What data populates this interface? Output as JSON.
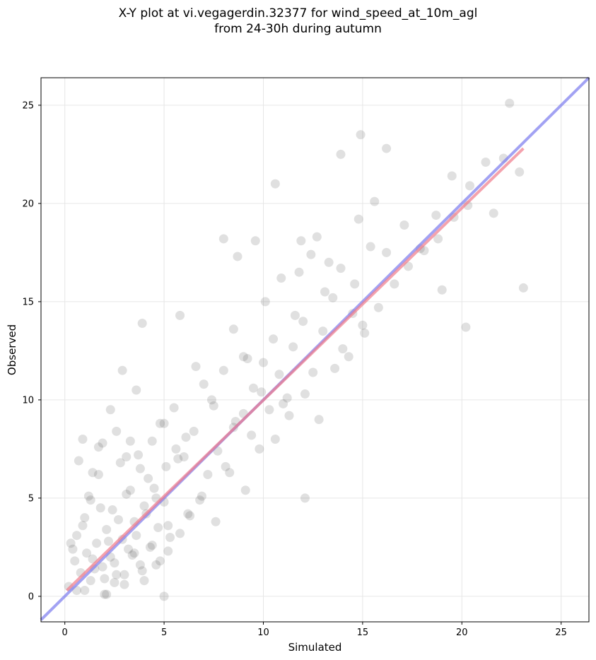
{
  "chart_data": {
    "type": "scatter",
    "title_lines": [
      "X-Y plot at vi.vegagerdin.32377 for wind_speed_at_10m_agl",
      "from 24-30h during autumn"
    ],
    "xlabel": "Simulated",
    "ylabel": "Observed",
    "xlim": [
      -1.2,
      26.4
    ],
    "ylim": [
      -1.3,
      26.4
    ],
    "xticks": [
      0,
      5,
      10,
      15,
      20,
      25
    ],
    "yticks": [
      0,
      5,
      10,
      15,
      20,
      25
    ],
    "grid": true,
    "point_color": "#555555",
    "point_opacity": 0.18,
    "identity_line": {
      "color": "#7b7bee",
      "from": [
        -1.2,
        -1.2
      ],
      "to": [
        26.4,
        26.4
      ]
    },
    "fit_line": {
      "color": "#f07b8a",
      "from": [
        0.1,
        0.3
      ],
      "to": [
        23.1,
        22.8
      ]
    },
    "series": [
      {
        "x": [
          0.2,
          0.5,
          0.8,
          0.6,
          1.1,
          1.3,
          1.6,
          1.9,
          2.1,
          2.3,
          2.6,
          2.9,
          3.2,
          3.5,
          3.8,
          4.1,
          4.4,
          4.7,
          5.0,
          5.3,
          0.4,
          0.9,
          1.4,
          1.8,
          2.2,
          2.7,
          3.1,
          3.6,
          4.0,
          4.5,
          1.0,
          1.5,
          2.0,
          2.5,
          3.0,
          3.4,
          3.9,
          4.3,
          4.8,
          5.2,
          1.2,
          1.7,
          2.4,
          2.8,
          3.3,
          3.7,
          4.2,
          4.6,
          5.1,
          5.6,
          0.7,
          1.3,
          1.9,
          2.6,
          3.1,
          3.8,
          4.4,
          5.0,
          5.7,
          6.1,
          2.0,
          2.5,
          3.0,
          3.5,
          4.0,
          4.6,
          5.2,
          5.8,
          6.3,
          6.8,
          7.2,
          7.7,
          8.1,
          8.6,
          9.0,
          9.4,
          9.9,
          10.3,
          10.8,
          11.2,
          5.5,
          6.0,
          6.5,
          7.0,
          7.5,
          8.0,
          8.5,
          9.0,
          9.5,
          10.0,
          10.5,
          11.0,
          11.5,
          12.0,
          12.5,
          13.0,
          13.5,
          14.0,
          14.5,
          15.0,
          6.2,
          6.9,
          7.6,
          8.3,
          9.1,
          9.8,
          10.6,
          11.3,
          12.1,
          12.8,
          13.6,
          14.3,
          15.1,
          15.8,
          16.6,
          17.3,
          18.1,
          18.8,
          19.6,
          20.3,
          8.5,
          9.2,
          10.1,
          10.9,
          11.6,
          12.4,
          13.1,
          13.9,
          14.6,
          15.4,
          3.9,
          4.8,
          5.8,
          6.6,
          7.4,
          8.7,
          9.6,
          11.8,
          12.7,
          13.3,
          14.8,
          15.6,
          16.2,
          17.1,
          17.9,
          18.7,
          19.5,
          20.4,
          21.2,
          22.1,
          22.9,
          23.1,
          21.6,
          20.2,
          19.0,
          0.3,
          0.6,
          1.0,
          1.4,
          2.3,
          2.9,
          3.3,
          0.9,
          1.7,
          3.6
        ],
        "y": [
          0.5,
          1.8,
          1.2,
          3.1,
          2.2,
          0.8,
          2.7,
          1.5,
          3.4,
          2.0,
          1.1,
          2.9,
          2.4,
          3.8,
          1.6,
          4.2,
          2.6,
          3.5,
          4.8,
          3.0,
          2.4,
          3.6,
          1.9,
          4.5,
          2.8,
          3.9,
          5.2,
          3.1,
          4.6,
          5.5,
          0.3,
          1.4,
          0.9,
          1.7,
          0.6,
          2.1,
          1.3,
          2.5,
          1.8,
          3.6,
          5.1,
          6.2,
          4.4,
          6.8,
          5.4,
          7.2,
          6.0,
          5.0,
          6.6,
          7.5,
          6.9,
          4.9,
          7.8,
          8.4,
          7.1,
          6.5,
          7.9,
          8.8,
          7.0,
          8.1,
          0.1,
          0.7,
          1.1,
          2.2,
          0.8,
          1.6,
          2.3,
          3.2,
          4.1,
          4.9,
          6.2,
          7.4,
          6.6,
          8.9,
          9.3,
          8.2,
          10.4,
          9.5,
          11.3,
          10.1,
          9.6,
          7.1,
          8.4,
          10.8,
          9.7,
          11.5,
          8.6,
          12.2,
          10.6,
          11.9,
          13.1,
          9.8,
          12.7,
          14.0,
          11.4,
          13.5,
          15.2,
          12.6,
          14.4,
          13.8,
          4.2,
          5.1,
          3.8,
          6.3,
          5.4,
          7.5,
          8.0,
          9.2,
          10.3,
          9.0,
          11.6,
          12.2,
          13.4,
          14.7,
          15.9,
          16.8,
          17.6,
          18.2,
          19.3,
          19.9,
          13.6,
          12.1,
          15.0,
          16.2,
          14.3,
          17.4,
          15.5,
          16.7,
          15.9,
          17.8,
          13.9,
          8.8,
          14.3,
          11.7,
          10.0,
          17.3,
          18.1,
          16.5,
          18.3,
          17.0,
          19.2,
          20.1,
          17.5,
          18.9,
          17.7,
          19.4,
          21.4,
          20.9,
          22.1,
          22.3,
          21.6,
          15.7,
          19.5,
          13.7,
          15.6,
          2.7,
          0.3,
          4.0,
          6.3,
          9.5,
          11.5,
          7.9,
          8.0,
          7.6,
          10.5
        ],
        "extra_marks": {
          "x": [
            10.6,
            14.9,
            22.4,
            13.9,
            16.2,
            8.0,
            11.9,
            5.0,
            2.1,
            12.1
          ],
          "y": [
            21.0,
            23.5,
            25.1,
            22.5,
            22.8,
            18.2,
            18.1,
            0.0,
            0.1,
            5.0
          ]
        }
      }
    ]
  }
}
